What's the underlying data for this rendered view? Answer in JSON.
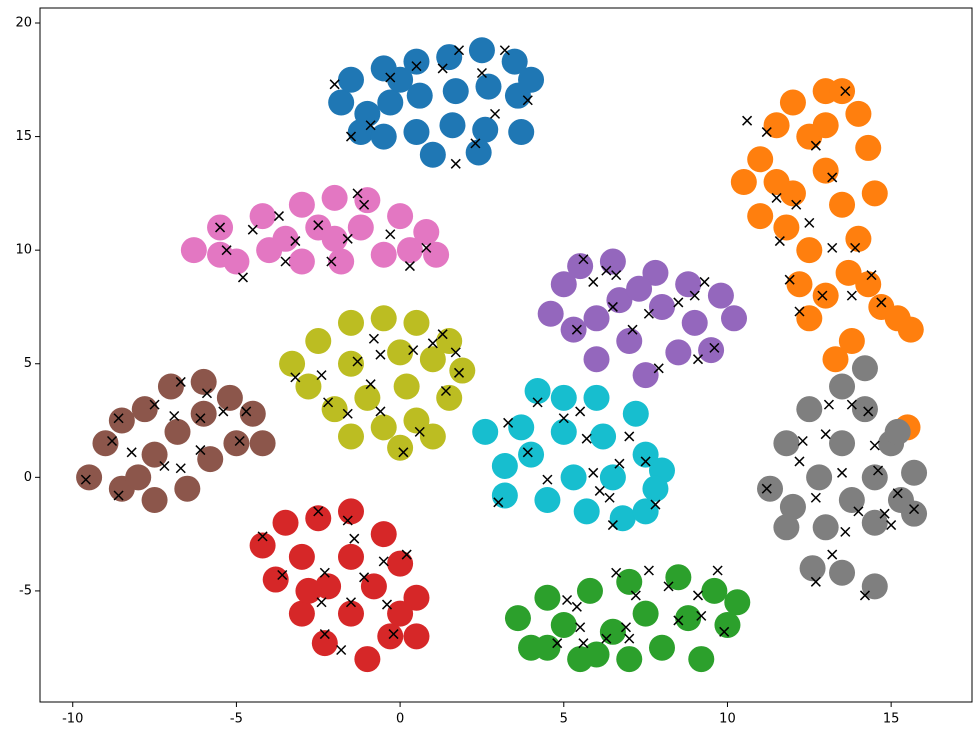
{
  "chart_data": {
    "type": "scatter",
    "xlim": [
      -11,
      17.47
    ],
    "ylim": [
      -9.89,
      20.66
    ],
    "xticks": [
      -10,
      -5,
      0,
      5,
      10,
      15
    ],
    "yticks": [
      -5,
      0,
      5,
      10,
      15,
      20
    ],
    "grid": false,
    "series": [
      {
        "color": "#1f77b4",
        "marker": "o",
        "x": [
          -1.8,
          -1.5,
          -1.2,
          -0.5,
          -0.3,
          -0.5,
          0.5,
          0.6,
          0.5,
          1,
          1.5,
          1.7,
          1.6,
          2.5,
          2.7,
          2.6,
          2.4,
          3.5,
          3.6,
          3.7,
          4,
          0,
          -1
        ],
        "y": [
          16.5,
          17.5,
          15.2,
          18,
          16.5,
          15,
          18.3,
          16.8,
          15.2,
          14.2,
          18.5,
          17,
          15.5,
          18.8,
          17.2,
          15.3,
          14.3,
          18.3,
          16.8,
          15.2,
          17.5,
          17.5,
          16
        ]
      },
      {
        "color": "#ff7f0e",
        "marker": "o",
        "x": [
          10.5,
          11,
          11.5,
          12,
          12.5,
          13,
          13.5,
          14,
          14.3,
          13,
          12,
          11,
          11.8,
          13.5,
          14.5,
          14,
          12.5,
          12.2,
          13,
          13.7,
          14.3,
          12.5,
          14.7,
          15.2,
          15.6,
          11.5,
          13,
          15.5,
          13.3,
          13.8
        ],
        "y": [
          13,
          14,
          15.5,
          16.5,
          15,
          17,
          17,
          16,
          14.5,
          13.5,
          12.5,
          11.5,
          11,
          12,
          12.5,
          10.5,
          10,
          8.5,
          8,
          9,
          8.5,
          7,
          7.5,
          7,
          6.5,
          13,
          15.5,
          2.2,
          5.2,
          6
        ]
      },
      {
        "color": "#2ca02c",
        "marker": "o",
        "x": [
          3.6,
          4,
          4.5,
          5,
          5.5,
          5.8,
          6.5,
          7,
          7,
          7.5,
          8,
          8.5,
          8.8,
          9.2,
          9.6,
          10,
          10.3,
          6,
          4.5
        ],
        "y": [
          -6.2,
          -7.5,
          -5.3,
          -6.5,
          -8,
          -5,
          -6.8,
          -4.6,
          -8,
          -6,
          -7.5,
          -4.4,
          -6.2,
          -8,
          -5,
          -6.5,
          -5.5,
          -7.8,
          -7.5
        ]
      },
      {
        "color": "#d62728",
        "marker": "o",
        "x": [
          -4.2,
          -3.8,
          -3.5,
          -3,
          -3,
          -2.5,
          -2.3,
          -2.2,
          -1.5,
          -1.5,
          -1.5,
          -1,
          -0.8,
          -0.5,
          -0.3,
          0,
          0.5,
          0.5,
          0,
          -2.8
        ],
        "y": [
          -3,
          -4.5,
          -2,
          -6,
          -3.5,
          -1.8,
          -7.3,
          -4.8,
          -1.5,
          -3.5,
          -6,
          -8,
          -4.8,
          -2.5,
          -7,
          -3.8,
          -5.3,
          -7,
          -6,
          -5
        ]
      },
      {
        "color": "#9467bd",
        "marker": "o",
        "x": [
          4.6,
          5,
          5.5,
          5.3,
          6,
          6.5,
          6.7,
          7,
          7.5,
          7.8,
          8,
          8.5,
          8.8,
          9,
          9.5,
          9.8,
          10.2,
          6,
          7.3
        ],
        "y": [
          7.2,
          8.5,
          9.3,
          6.5,
          5.2,
          9.5,
          7.8,
          6,
          4.5,
          9,
          7.5,
          5.5,
          8.5,
          6.8,
          5.6,
          8,
          7,
          7,
          8.3
        ]
      },
      {
        "color": "#8c564b",
        "marker": "o",
        "x": [
          -9.5,
          -9,
          -8.5,
          -8.5,
          -7.8,
          -7.5,
          -7.5,
          -7,
          -6.8,
          -6.5,
          -6,
          -6,
          -5.8,
          -5.2,
          -5,
          -4.5,
          -4.2,
          -8
        ],
        "y": [
          0,
          1.5,
          2.5,
          -0.5,
          3,
          1,
          -1,
          4,
          2,
          -0.5,
          4.2,
          2.8,
          0.8,
          3.5,
          1.5,
          2.8,
          1.5,
          0
        ]
      },
      {
        "color": "#e377c2",
        "marker": "o",
        "x": [
          -6.3,
          -5.5,
          -5,
          -4.2,
          -4,
          -3,
          -3,
          -2.5,
          -2,
          -1.8,
          -1.2,
          -1,
          -0.5,
          0,
          0.3,
          0.8,
          1.1,
          -3.5,
          -5.5,
          -2
        ],
        "y": [
          10,
          11,
          9.5,
          11.5,
          10,
          12,
          9.5,
          11,
          12.3,
          9.5,
          11,
          12.2,
          9.8,
          11.5,
          10,
          10.8,
          9.8,
          10.5,
          9.8,
          10.5
        ]
      },
      {
        "color": "#7f7f7f",
        "marker": "o",
        "x": [
          11.3,
          11.8,
          12,
          12.5,
          12.8,
          13,
          13.5,
          13.5,
          13.8,
          14.2,
          14.5,
          14.5,
          15,
          15.3,
          15.7,
          14.2,
          12.6,
          13.5,
          14.5,
          15.7,
          15.2,
          11.8
        ],
        "y": [
          -0.5,
          1.5,
          -1.3,
          3,
          0,
          -2.2,
          4,
          1.5,
          -1,
          3,
          0,
          -2,
          1.5,
          -1,
          0.2,
          4.8,
          -4,
          -4.2,
          -4.8,
          -1.6,
          2,
          -2.2
        ]
      },
      {
        "color": "#bcbd22",
        "marker": "o",
        "x": [
          -3.3,
          -2.8,
          -2.5,
          -2,
          -1.5,
          -1.5,
          -1,
          -0.5,
          -0.5,
          0,
          0.2,
          0.5,
          0.5,
          1,
          1,
          1.5,
          1.5,
          1.9,
          -1.5,
          0
        ],
        "y": [
          5,
          4,
          6,
          3,
          6.8,
          5,
          3.5,
          7,
          2.2,
          5.5,
          4,
          6.8,
          2.5,
          5.2,
          1.8,
          6,
          3.5,
          4.7,
          1.8,
          1.3
        ]
      },
      {
        "color": "#17becf",
        "marker": "o",
        "x": [
          2.6,
          3.2,
          3.2,
          3.7,
          4.2,
          4,
          4.5,
          5,
          5,
          5.3,
          5.7,
          6,
          6.2,
          6.5,
          6.8,
          7.2,
          7.5,
          7.5,
          8,
          7.8
        ],
        "y": [
          2,
          0.5,
          -0.8,
          2.2,
          3.8,
          1,
          -1,
          3.5,
          2,
          0,
          -1.5,
          3.5,
          1.8,
          0,
          -1.8,
          2.8,
          1,
          -1.5,
          0.3,
          -0.5
        ]
      },
      {
        "color": "#000000",
        "marker": "x",
        "x": [
          -2,
          -1.5,
          -0.3,
          0.5,
          1.3,
          1.8,
          2.5,
          3.2,
          3.9,
          2.9,
          2.3,
          1.7,
          -0.9,
          10.6,
          11.2,
          12.7,
          13.6,
          13.2,
          12.1,
          11.5,
          12.5,
          11.6,
          13.2,
          13.9,
          11.9,
          12.9,
          13.8,
          14.4,
          14.7,
          12.2,
          -5.5,
          -5.3,
          -4.5,
          -3.7,
          -3.2,
          -2.5,
          -1.6,
          -1.1,
          -0.3,
          0.3,
          0.8,
          -4.8,
          -2.1,
          -3.5,
          -1.3,
          5.6,
          5.9,
          6.3,
          6.6,
          6.5,
          7.1,
          7.6,
          8.5,
          9,
          9.3,
          9.6,
          9.1,
          7.9,
          5.4,
          -3.2,
          -2.4,
          -2.2,
          -1.6,
          -1.3,
          -0.9,
          -0.6,
          -0.8,
          -0.6,
          0.4,
          1,
          1.3,
          1.7,
          1.4,
          0.6,
          1.8,
          0.1,
          -9.6,
          -8.8,
          -8.6,
          -8.6,
          -8.2,
          -7.5,
          -7.2,
          -6.9,
          -6.7,
          -6.1,
          -5.9,
          -5.4,
          -4.9,
          -4.7,
          -6.7,
          -6.1,
          3,
          3.3,
          4.2,
          3.9,
          4.5,
          5,
          5.5,
          5.7,
          5.9,
          6.1,
          6.4,
          6.5,
          7,
          7.5,
          7.8,
          6.7,
          11.2,
          12.3,
          12.2,
          12.7,
          13,
          13.1,
          13.5,
          13.8,
          14,
          14.3,
          14.5,
          14.6,
          15.2,
          14.8,
          15,
          14.2,
          12.7,
          13.2,
          15.7,
          13.6,
          -4.2,
          -3.6,
          -2.5,
          -2.3,
          -2.4,
          -2.3,
          -1.8,
          -1.6,
          -1.4,
          -1.1,
          -0.5,
          -0.4,
          0.2,
          -0.2,
          -1.5,
          4.8,
          5.1,
          5.4,
          5.5,
          5.6,
          6.3,
          6.6,
          6.9,
          7.2,
          7.6,
          8.2,
          8.5,
          9.2,
          9.7,
          9.9,
          9.1,
          7
        ],
        "y": [
          17.3,
          15,
          17.6,
          18.1,
          18,
          18.8,
          17.8,
          18.8,
          16.6,
          16,
          14.7,
          13.8,
          15.5,
          15.7,
          15.2,
          14.6,
          17,
          13.2,
          12,
          12.3,
          11.2,
          10.4,
          10.1,
          10.1,
          8.7,
          8,
          8,
          8.9,
          7.7,
          7.3,
          11,
          10,
          10.9,
          11.5,
          10.4,
          11.1,
          10.5,
          12,
          10.7,
          9.3,
          10.1,
          8.8,
          9.5,
          9.5,
          12.5,
          9.6,
          8.6,
          9.1,
          8.9,
          7.5,
          6.5,
          7.2,
          7.7,
          8,
          8.6,
          5.7,
          5.2,
          4.8,
          6.5,
          4.4,
          4.5,
          3.3,
          2.8,
          5.1,
          4.1,
          5.4,
          6.1,
          2.9,
          5.6,
          5.9,
          6.3,
          5.5,
          3.8,
          2,
          4.6,
          1.1,
          -0.1,
          1.6,
          2.6,
          -0.8,
          1.1,
          3.2,
          0.5,
          2.7,
          4.2,
          2.6,
          3.7,
          2.9,
          1.6,
          2.9,
          0.4,
          1.2,
          -1.1,
          2.4,
          3.3,
          1.1,
          -0.1,
          2.6,
          2.9,
          1.7,
          0.2,
          -0.6,
          -0.9,
          -2.1,
          1.8,
          0.7,
          -1.2,
          0.6,
          -0.5,
          1.6,
          0.7,
          -0.9,
          1.9,
          3.2,
          0.2,
          3.2,
          -1.5,
          2.9,
          1.4,
          0.3,
          -0.7,
          -1.6,
          -2.1,
          -5.2,
          -4.6,
          -3.4,
          -1.4,
          -2.4,
          -2.6,
          -4.3,
          -1.5,
          -4.2,
          -5.5,
          -6.9,
          -7.6,
          -1.9,
          -2.7,
          -4.4,
          -3.7,
          -5.6,
          -3.4,
          -6.9,
          -5.5,
          -7.3,
          -5.4,
          -5.7,
          -6.6,
          -7.3,
          -7.1,
          -4.2,
          -6.6,
          -5.2,
          -4.1,
          -4.8,
          -6.3,
          -6.1,
          -4.1,
          -6.8,
          -5.2,
          -7.1
        ]
      }
    ]
  }
}
